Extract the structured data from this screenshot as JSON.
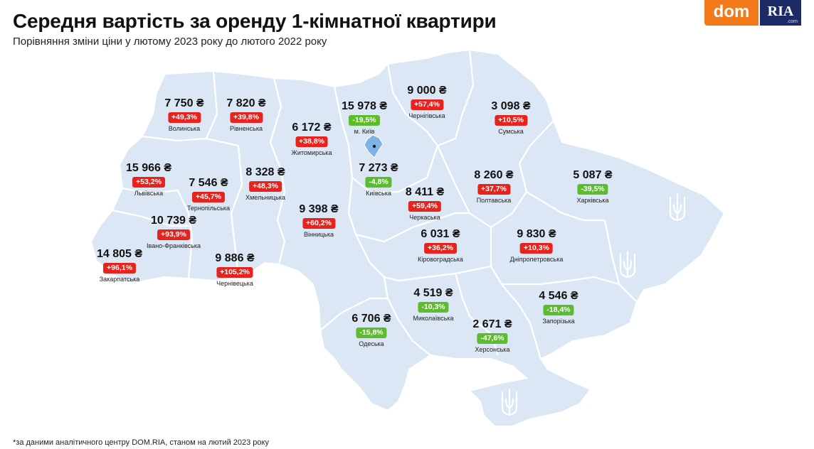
{
  "header": {
    "title": "Середня вартість за оренду 1-кімнатної квартири",
    "subtitle": "Порівняння зміни ціни у лютому 2023 року до лютого 2022 року"
  },
  "logo": {
    "dom": "dom",
    "ria": "RIA",
    "com": ".com"
  },
  "footnote": "*за даними аналітичного центру DOM.RIA, станом на лютий 2023 року",
  "colors": {
    "map_fill": "#dbe7f5",
    "border": "#ffffff",
    "increase": "#e8231d",
    "decrease": "#5bbd2b",
    "kyiv": "#7fb3e6"
  },
  "regions": [
    {
      "id": "volynska",
      "price": "7 750 ₴",
      "change": "+49,3%",
      "trend": "up",
      "name": "Волинська"
    },
    {
      "id": "rivnenska",
      "price": "7 820 ₴",
      "change": "+39,8%",
      "trend": "up",
      "name": "Рівненська"
    },
    {
      "id": "zhytomyrska",
      "price": "6 172 ₴",
      "change": "+38,8%",
      "trend": "up",
      "name": "Житомирська"
    },
    {
      "id": "kyiv-city",
      "price": "15 978 ₴",
      "change": "-19,5%",
      "trend": "down",
      "name": "м. Київ"
    },
    {
      "id": "chernihivska",
      "price": "9 000 ₴",
      "change": "+57,4%",
      "trend": "up",
      "name": "Чернігівська"
    },
    {
      "id": "sumska",
      "price": "3 098 ₴",
      "change": "+10,5%",
      "trend": "up",
      "name": "Сумська"
    },
    {
      "id": "lvivska",
      "price": "15 966 ₴",
      "change": "+53,2%",
      "trend": "up",
      "name": "Львівська"
    },
    {
      "id": "ternopilska",
      "price": "7 546 ₴",
      "change": "+45,7%",
      "trend": "up",
      "name": "Тернопільська"
    },
    {
      "id": "khmelnytska",
      "price": "8 328 ₴",
      "change": "+48,3%",
      "trend": "up",
      "name": "Хмельницька"
    },
    {
      "id": "kyivska",
      "price": "7 273 ₴",
      "change": "-4,8%",
      "trend": "down",
      "name": "Київська"
    },
    {
      "id": "poltavska",
      "price": "8 260 ₴",
      "change": "+37,7%",
      "trend": "up",
      "name": "Полтавська"
    },
    {
      "id": "kharkivska",
      "price": "5 087 ₴",
      "change": "-39,5%",
      "trend": "down",
      "name": "Харківська"
    },
    {
      "id": "cherkaska",
      "price": "8 411 ₴",
      "change": "+59,4%",
      "trend": "up",
      "name": "Черкаська"
    },
    {
      "id": "vinnytska",
      "price": "9 398 ₴",
      "change": "+60,2%",
      "trend": "up",
      "name": "Вінницька"
    },
    {
      "id": "ivano-frankivska",
      "price": "10 739 ₴",
      "change": "+93,9%",
      "trend": "up",
      "name": "Івано-Франківська"
    },
    {
      "id": "zakarpatska",
      "price": "14 805 ₴",
      "change": "+96,1%",
      "trend": "up",
      "name": "Закарпатська"
    },
    {
      "id": "chernivetska",
      "price": "9 886 ₴",
      "change": "+105,2%",
      "trend": "up",
      "name": "Чернівецька"
    },
    {
      "id": "kirovohradska",
      "price": "6 031 ₴",
      "change": "+36,2%",
      "trend": "up",
      "name": "Кіровоградська"
    },
    {
      "id": "dnipropetrovska",
      "price": "9 830 ₴",
      "change": "+10,3%",
      "trend": "up",
      "name": "Дніпропетровська"
    },
    {
      "id": "mykolaivska",
      "price": "4 519 ₴",
      "change": "-10,3%",
      "trend": "down",
      "name": "Миколаївська"
    },
    {
      "id": "zaporizka",
      "price": "4 546 ₴",
      "change": "-18,4%",
      "trend": "down",
      "name": "Запорізька"
    },
    {
      "id": "odeska",
      "price": "6 706 ₴",
      "change": "-15,8%",
      "trend": "down",
      "name": "Одеська"
    },
    {
      "id": "khersonska",
      "price": "2 671 ₴",
      "change": "-47,6%",
      "trend": "down",
      "name": "Херсонська"
    }
  ]
}
